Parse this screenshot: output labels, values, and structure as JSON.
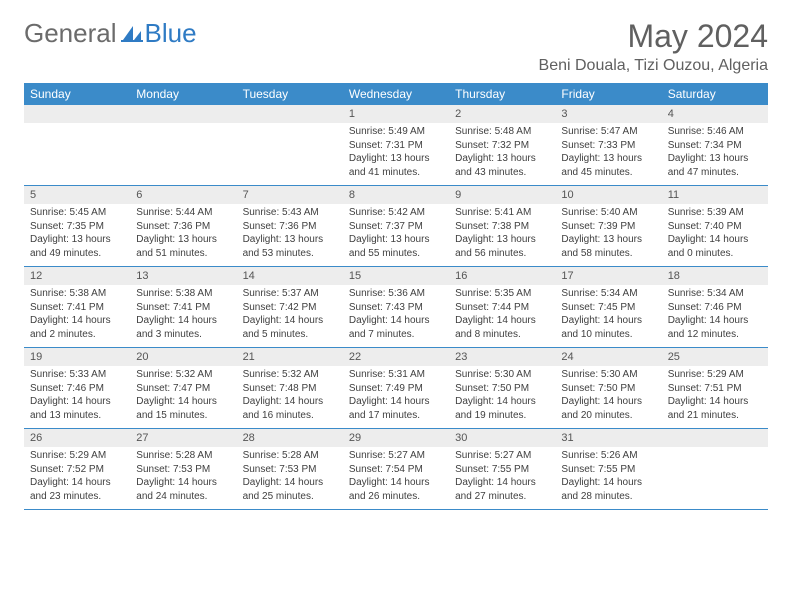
{
  "brand": {
    "part1": "General",
    "part2": "Blue"
  },
  "title": "May 2024",
  "location": "Beni Douala, Tizi Ouzou, Algeria",
  "colors": {
    "header_bg": "#3b8bc9",
    "header_text": "#ffffff",
    "daynum_bg": "#ededed",
    "text": "#404040",
    "title_text": "#606060",
    "brand_gray": "#6b6b6b",
    "brand_blue": "#2f7bc4",
    "border": "#3b8bc9"
  },
  "weekdays": [
    "Sunday",
    "Monday",
    "Tuesday",
    "Wednesday",
    "Thursday",
    "Friday",
    "Saturday"
  ],
  "weeks": [
    [
      {
        "num": "",
        "sunrise": "",
        "sunset": "",
        "daylight": ""
      },
      {
        "num": "",
        "sunrise": "",
        "sunset": "",
        "daylight": ""
      },
      {
        "num": "",
        "sunrise": "",
        "sunset": "",
        "daylight": ""
      },
      {
        "num": "1",
        "sunrise": "Sunrise: 5:49 AM",
        "sunset": "Sunset: 7:31 PM",
        "daylight": "Daylight: 13 hours and 41 minutes."
      },
      {
        "num": "2",
        "sunrise": "Sunrise: 5:48 AM",
        "sunset": "Sunset: 7:32 PM",
        "daylight": "Daylight: 13 hours and 43 minutes."
      },
      {
        "num": "3",
        "sunrise": "Sunrise: 5:47 AM",
        "sunset": "Sunset: 7:33 PM",
        "daylight": "Daylight: 13 hours and 45 minutes."
      },
      {
        "num": "4",
        "sunrise": "Sunrise: 5:46 AM",
        "sunset": "Sunset: 7:34 PM",
        "daylight": "Daylight: 13 hours and 47 minutes."
      }
    ],
    [
      {
        "num": "5",
        "sunrise": "Sunrise: 5:45 AM",
        "sunset": "Sunset: 7:35 PM",
        "daylight": "Daylight: 13 hours and 49 minutes."
      },
      {
        "num": "6",
        "sunrise": "Sunrise: 5:44 AM",
        "sunset": "Sunset: 7:36 PM",
        "daylight": "Daylight: 13 hours and 51 minutes."
      },
      {
        "num": "7",
        "sunrise": "Sunrise: 5:43 AM",
        "sunset": "Sunset: 7:36 PM",
        "daylight": "Daylight: 13 hours and 53 minutes."
      },
      {
        "num": "8",
        "sunrise": "Sunrise: 5:42 AM",
        "sunset": "Sunset: 7:37 PM",
        "daylight": "Daylight: 13 hours and 55 minutes."
      },
      {
        "num": "9",
        "sunrise": "Sunrise: 5:41 AM",
        "sunset": "Sunset: 7:38 PM",
        "daylight": "Daylight: 13 hours and 56 minutes."
      },
      {
        "num": "10",
        "sunrise": "Sunrise: 5:40 AM",
        "sunset": "Sunset: 7:39 PM",
        "daylight": "Daylight: 13 hours and 58 minutes."
      },
      {
        "num": "11",
        "sunrise": "Sunrise: 5:39 AM",
        "sunset": "Sunset: 7:40 PM",
        "daylight": "Daylight: 14 hours and 0 minutes."
      }
    ],
    [
      {
        "num": "12",
        "sunrise": "Sunrise: 5:38 AM",
        "sunset": "Sunset: 7:41 PM",
        "daylight": "Daylight: 14 hours and 2 minutes."
      },
      {
        "num": "13",
        "sunrise": "Sunrise: 5:38 AM",
        "sunset": "Sunset: 7:41 PM",
        "daylight": "Daylight: 14 hours and 3 minutes."
      },
      {
        "num": "14",
        "sunrise": "Sunrise: 5:37 AM",
        "sunset": "Sunset: 7:42 PM",
        "daylight": "Daylight: 14 hours and 5 minutes."
      },
      {
        "num": "15",
        "sunrise": "Sunrise: 5:36 AM",
        "sunset": "Sunset: 7:43 PM",
        "daylight": "Daylight: 14 hours and 7 minutes."
      },
      {
        "num": "16",
        "sunrise": "Sunrise: 5:35 AM",
        "sunset": "Sunset: 7:44 PM",
        "daylight": "Daylight: 14 hours and 8 minutes."
      },
      {
        "num": "17",
        "sunrise": "Sunrise: 5:34 AM",
        "sunset": "Sunset: 7:45 PM",
        "daylight": "Daylight: 14 hours and 10 minutes."
      },
      {
        "num": "18",
        "sunrise": "Sunrise: 5:34 AM",
        "sunset": "Sunset: 7:46 PM",
        "daylight": "Daylight: 14 hours and 12 minutes."
      }
    ],
    [
      {
        "num": "19",
        "sunrise": "Sunrise: 5:33 AM",
        "sunset": "Sunset: 7:46 PM",
        "daylight": "Daylight: 14 hours and 13 minutes."
      },
      {
        "num": "20",
        "sunrise": "Sunrise: 5:32 AM",
        "sunset": "Sunset: 7:47 PM",
        "daylight": "Daylight: 14 hours and 15 minutes."
      },
      {
        "num": "21",
        "sunrise": "Sunrise: 5:32 AM",
        "sunset": "Sunset: 7:48 PM",
        "daylight": "Daylight: 14 hours and 16 minutes."
      },
      {
        "num": "22",
        "sunrise": "Sunrise: 5:31 AM",
        "sunset": "Sunset: 7:49 PM",
        "daylight": "Daylight: 14 hours and 17 minutes."
      },
      {
        "num": "23",
        "sunrise": "Sunrise: 5:30 AM",
        "sunset": "Sunset: 7:50 PM",
        "daylight": "Daylight: 14 hours and 19 minutes."
      },
      {
        "num": "24",
        "sunrise": "Sunrise: 5:30 AM",
        "sunset": "Sunset: 7:50 PM",
        "daylight": "Daylight: 14 hours and 20 minutes."
      },
      {
        "num": "25",
        "sunrise": "Sunrise: 5:29 AM",
        "sunset": "Sunset: 7:51 PM",
        "daylight": "Daylight: 14 hours and 21 minutes."
      }
    ],
    [
      {
        "num": "26",
        "sunrise": "Sunrise: 5:29 AM",
        "sunset": "Sunset: 7:52 PM",
        "daylight": "Daylight: 14 hours and 23 minutes."
      },
      {
        "num": "27",
        "sunrise": "Sunrise: 5:28 AM",
        "sunset": "Sunset: 7:53 PM",
        "daylight": "Daylight: 14 hours and 24 minutes."
      },
      {
        "num": "28",
        "sunrise": "Sunrise: 5:28 AM",
        "sunset": "Sunset: 7:53 PM",
        "daylight": "Daylight: 14 hours and 25 minutes."
      },
      {
        "num": "29",
        "sunrise": "Sunrise: 5:27 AM",
        "sunset": "Sunset: 7:54 PM",
        "daylight": "Daylight: 14 hours and 26 minutes."
      },
      {
        "num": "30",
        "sunrise": "Sunrise: 5:27 AM",
        "sunset": "Sunset: 7:55 PM",
        "daylight": "Daylight: 14 hours and 27 minutes."
      },
      {
        "num": "31",
        "sunrise": "Sunrise: 5:26 AM",
        "sunset": "Sunset: 7:55 PM",
        "daylight": "Daylight: 14 hours and 28 minutes."
      },
      {
        "num": "",
        "sunrise": "",
        "sunset": "",
        "daylight": ""
      }
    ]
  ]
}
